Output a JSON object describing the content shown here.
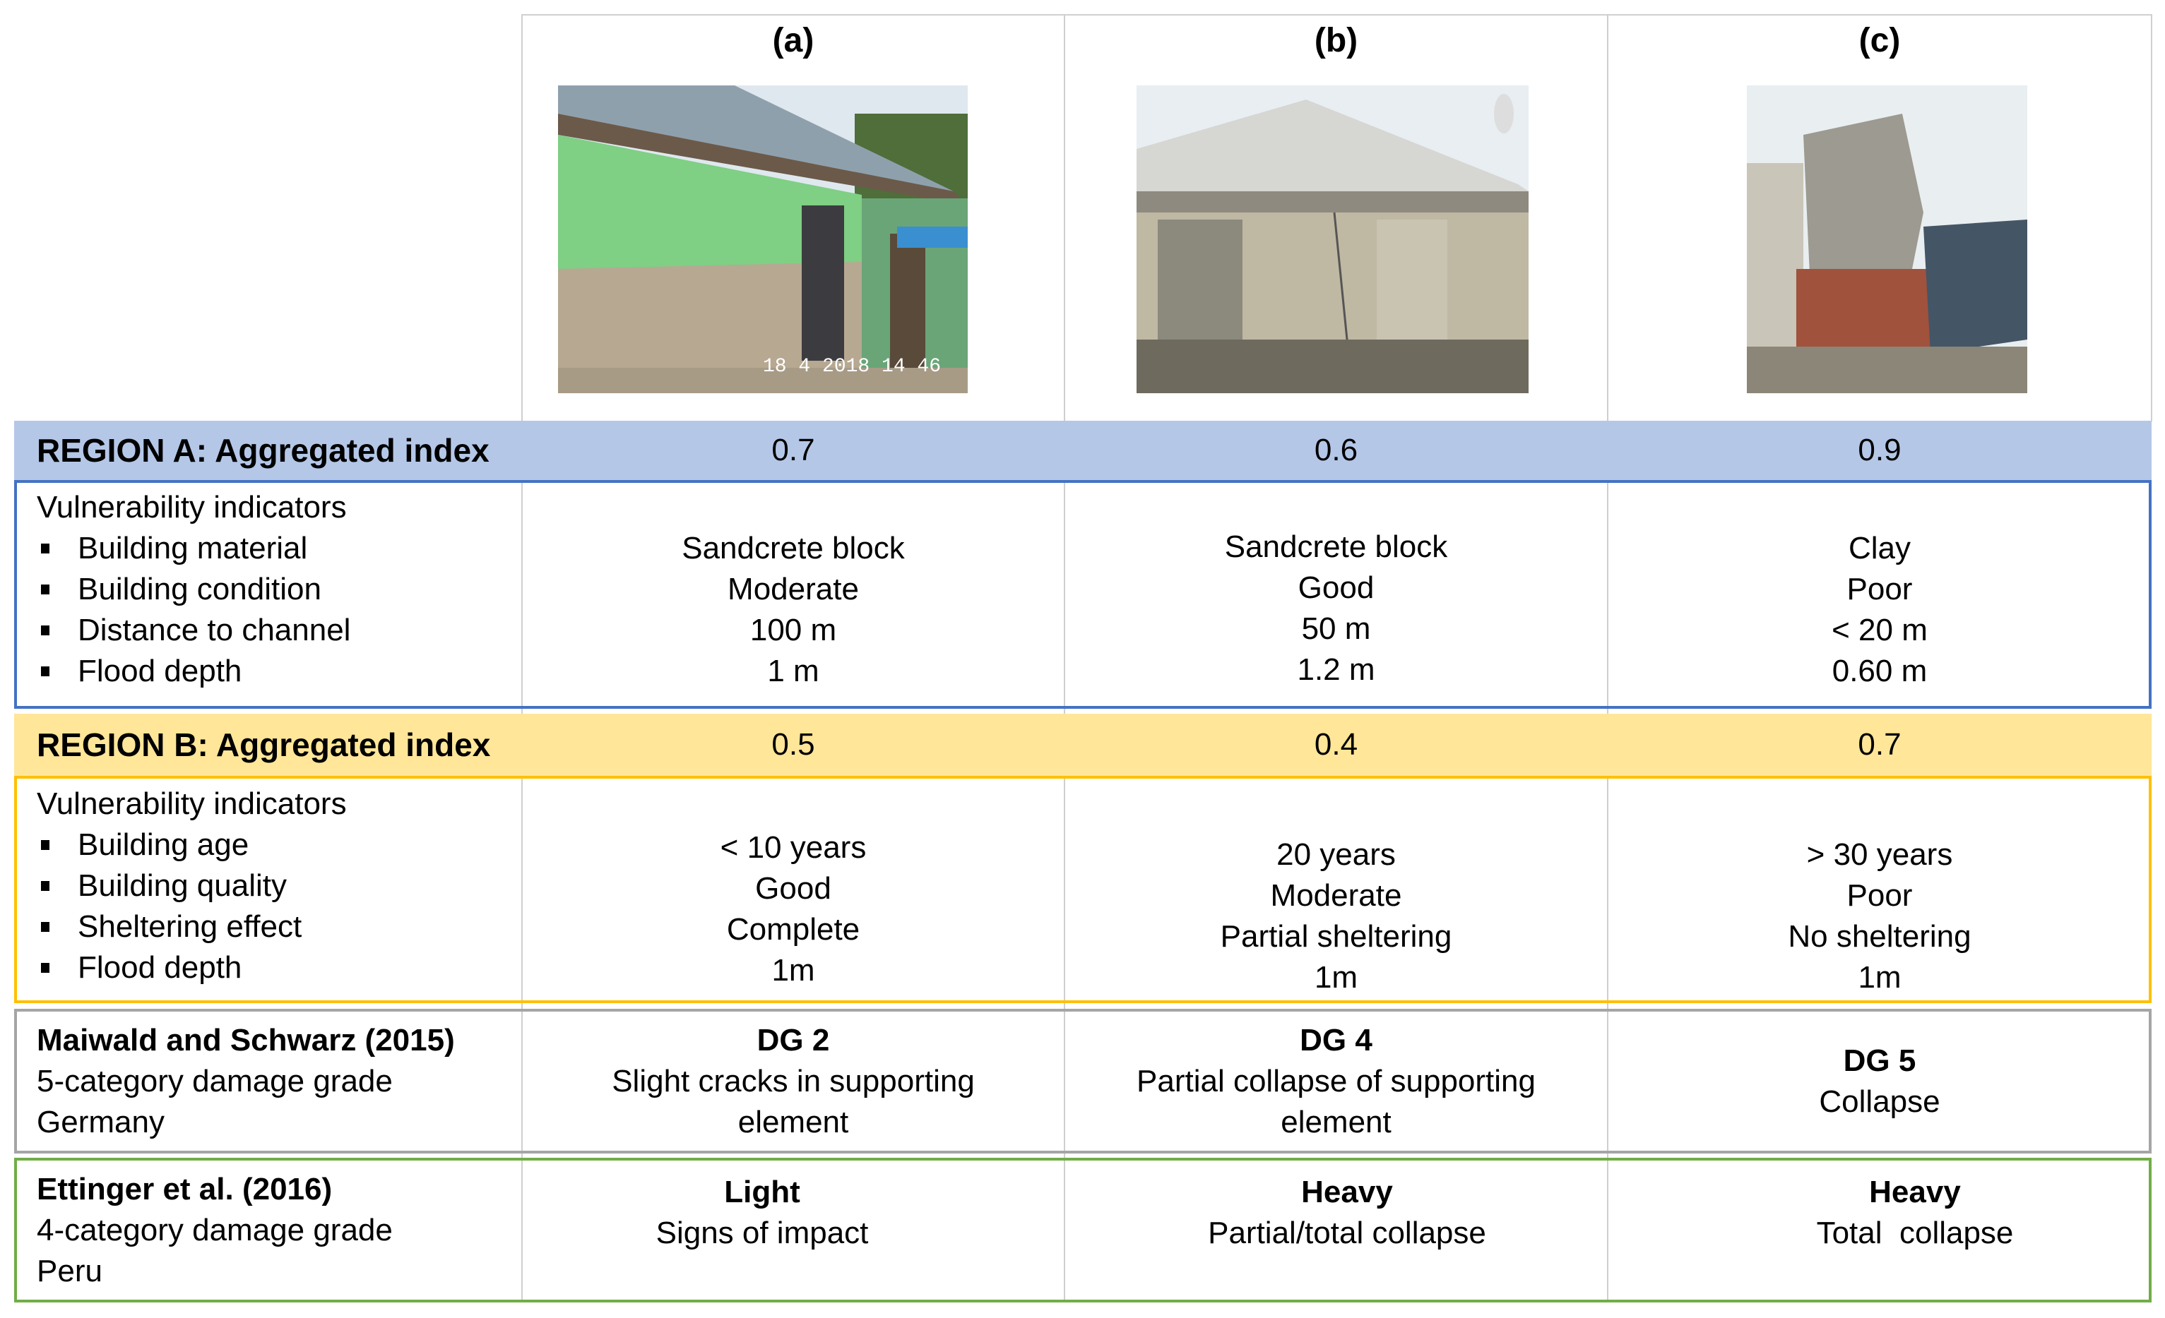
{
  "columns": [
    "(a)",
    "(b)",
    "(c)"
  ],
  "photos": [
    {
      "label": "building-photo-a",
      "timestamp": "18 4 2018 14 46"
    },
    {
      "label": "building-photo-b"
    },
    {
      "label": "building-photo-c"
    }
  ],
  "region_a": {
    "title": "REGION A: Aggregated index",
    "color": "#b4c7e7",
    "border_color": "#4472c4",
    "index": [
      "0.7",
      "0.6",
      "0.9"
    ],
    "indicators_heading": "Vulnerability indicators",
    "indicators": [
      "Building material",
      "Building condition",
      "Distance to channel",
      "Flood depth"
    ],
    "values": [
      [
        "Sandcrete block",
        "Moderate",
        "100 m",
        "1 m"
      ],
      [
        "Sandcrete block",
        "Good",
        "50 m",
        "1.2 m"
      ],
      [
        "Clay",
        "Poor",
        "< 20 m",
        "0.60 m"
      ]
    ]
  },
  "region_b": {
    "title": "REGION B: Aggregated index",
    "color": "#ffe699",
    "border_color": "#ffc000",
    "index": [
      "0.5",
      "0.4",
      "0.7"
    ],
    "indicators_heading": "Vulnerability indicators",
    "indicators": [
      "Building age",
      "Building quality",
      "Sheltering effect",
      "Flood depth"
    ],
    "values": [
      [
        "< 10 years",
        "Good",
        "Complete",
        "1m"
      ],
      [
        "20 years",
        "Moderate",
        "Partial sheltering",
        "1m"
      ],
      [
        "> 30 years",
        "Poor",
        "No sheltering",
        "1m"
      ]
    ]
  },
  "maiwald": {
    "source": "Maiwald and Schwarz (2015)",
    "lines": [
      "5-category damage grade",
      "Germany"
    ],
    "border_color": "#a5a5a5",
    "grades": [
      {
        "grade": "DG 2",
        "desc": [
          "Slight cracks in supporting",
          "element"
        ]
      },
      {
        "grade": "DG 4",
        "desc": [
          "Partial collapse of supporting",
          "element"
        ]
      },
      {
        "grade": "DG 5",
        "desc": [
          "Collapse"
        ]
      }
    ]
  },
  "ettinger": {
    "source": "Ettinger et al. (2016)",
    "lines": [
      "4-category damage grade",
      "Peru"
    ],
    "border_color": "#70ad47",
    "grades": [
      {
        "grade": "Light",
        "desc": [
          "Signs of impact"
        ]
      },
      {
        "grade": "Heavy",
        "desc": [
          "Partial/total collapse"
        ]
      },
      {
        "grade": "Heavy",
        "desc": [
          "Total  collapse"
        ]
      }
    ]
  }
}
